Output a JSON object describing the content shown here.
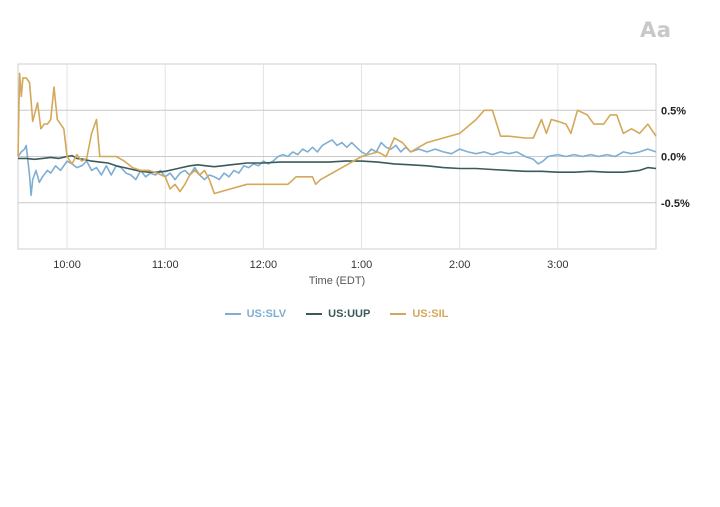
{
  "font_toggle_label": "Aa",
  "chart_data": {
    "type": "line",
    "xlabel": "Time (EDT)",
    "ylabel": "",
    "x_ticks": [
      "10:00",
      "11:00",
      "12:00",
      "1:00",
      "2:00",
      "3:00"
    ],
    "y_ticks": [
      {
        "value": 0.5,
        "label": "0.5%"
      },
      {
        "value": 0.0,
        "label": "0.0%"
      },
      {
        "value": -0.5,
        "label": "-0.5%"
      }
    ],
    "ylim": [
      -1.0,
      1.0
    ],
    "xlim": [
      "9:30",
      "4:00"
    ],
    "grid": true,
    "legend_position": "bottom",
    "series": [
      {
        "name": "US:SLV",
        "color": "#7eaed3",
        "points": [
          [
            "9:30",
            0.0
          ],
          [
            "9:32",
            0.05
          ],
          [
            "9:34",
            0.08
          ],
          [
            "9:35",
            0.12
          ],
          [
            "9:37",
            -0.2
          ],
          [
            "9:38",
            -0.42
          ],
          [
            "9:39",
            -0.25
          ],
          [
            "9:41",
            -0.15
          ],
          [
            "9:43",
            -0.28
          ],
          [
            "9:45",
            -0.22
          ],
          [
            "9:48",
            -0.15
          ],
          [
            "9:50",
            -0.18
          ],
          [
            "9:53",
            -0.1
          ],
          [
            "9:56",
            -0.15
          ],
          [
            "10:00",
            -0.05
          ],
          [
            "10:03",
            -0.08
          ],
          [
            "10:06",
            -0.12
          ],
          [
            "10:09",
            -0.1
          ],
          [
            "10:12",
            -0.05
          ],
          [
            "10:15",
            -0.15
          ],
          [
            "10:18",
            -0.12
          ],
          [
            "10:21",
            -0.2
          ],
          [
            "10:24",
            -0.1
          ],
          [
            "10:27",
            -0.2
          ],
          [
            "10:30",
            -0.1
          ],
          [
            "10:33",
            -0.12
          ],
          [
            "10:36",
            -0.18
          ],
          [
            "10:39",
            -0.2
          ],
          [
            "10:42",
            -0.25
          ],
          [
            "10:45",
            -0.15
          ],
          [
            "10:48",
            -0.22
          ],
          [
            "10:51",
            -0.18
          ],
          [
            "10:54",
            -0.2
          ],
          [
            "10:57",
            -0.15
          ],
          [
            "11:00",
            -0.22
          ],
          [
            "11:03",
            -0.18
          ],
          [
            "11:06",
            -0.25
          ],
          [
            "11:09",
            -0.18
          ],
          [
            "11:12",
            -0.15
          ],
          [
            "11:15",
            -0.2
          ],
          [
            "11:18",
            -0.12
          ],
          [
            "11:21",
            -0.2
          ],
          [
            "11:24",
            -0.25
          ],
          [
            "11:27",
            -0.2
          ],
          [
            "11:30",
            -0.22
          ],
          [
            "11:33",
            -0.25
          ],
          [
            "11:36",
            -0.18
          ],
          [
            "11:39",
            -0.22
          ],
          [
            "11:42",
            -0.15
          ],
          [
            "11:45",
            -0.18
          ],
          [
            "11:48",
            -0.1
          ],
          [
            "11:51",
            -0.12
          ],
          [
            "11:54",
            -0.08
          ],
          [
            "11:57",
            -0.1
          ],
          [
            "12:00",
            -0.05
          ],
          [
            "12:03",
            -0.08
          ],
          [
            "12:06",
            -0.05
          ],
          [
            "12:09",
            0.0
          ],
          [
            "12:12",
            0.02
          ],
          [
            "12:15",
            0.0
          ],
          [
            "12:18",
            0.05
          ],
          [
            "12:21",
            0.02
          ],
          [
            "12:24",
            0.08
          ],
          [
            "12:27",
            0.05
          ],
          [
            "12:30",
            0.1
          ],
          [
            "12:33",
            0.05
          ],
          [
            "12:36",
            0.12
          ],
          [
            "12:39",
            0.15
          ],
          [
            "12:42",
            0.18
          ],
          [
            "12:45",
            0.12
          ],
          [
            "12:48",
            0.15
          ],
          [
            "12:51",
            0.1
          ],
          [
            "12:54",
            0.15
          ],
          [
            "12:57",
            0.1
          ],
          [
            "1:00",
            0.05
          ],
          [
            "1:03",
            0.02
          ],
          [
            "1:06",
            0.08
          ],
          [
            "1:09",
            0.05
          ],
          [
            "1:12",
            0.15
          ],
          [
            "1:15",
            0.1
          ],
          [
            "1:18",
            0.08
          ],
          [
            "1:21",
            0.12
          ],
          [
            "1:24",
            0.05
          ],
          [
            "1:27",
            0.1
          ],
          [
            "1:30",
            0.05
          ],
          [
            "1:35",
            0.08
          ],
          [
            "1:40",
            0.05
          ],
          [
            "1:45",
            0.08
          ],
          [
            "1:50",
            0.05
          ],
          [
            "1:55",
            0.03
          ],
          [
            "2:00",
            0.08
          ],
          [
            "2:05",
            0.05
          ],
          [
            "2:10",
            0.03
          ],
          [
            "2:15",
            0.05
          ],
          [
            "2:20",
            0.02
          ],
          [
            "2:25",
            0.05
          ],
          [
            "2:30",
            0.03
          ],
          [
            "2:35",
            0.05
          ],
          [
            "2:40",
            0.0
          ],
          [
            "2:45",
            -0.03
          ],
          [
            "2:48",
            -0.08
          ],
          [
            "2:51",
            -0.05
          ],
          [
            "2:54",
            0.0
          ],
          [
            "3:00",
            0.02
          ],
          [
            "3:05",
            0.0
          ],
          [
            "3:10",
            0.02
          ],
          [
            "3:15",
            0.0
          ],
          [
            "3:20",
            0.02
          ],
          [
            "3:25",
            0.0
          ],
          [
            "3:30",
            0.02
          ],
          [
            "3:35",
            0.0
          ],
          [
            "3:40",
            0.05
          ],
          [
            "3:45",
            0.03
          ],
          [
            "3:50",
            0.05
          ],
          [
            "3:55",
            0.08
          ],
          [
            "4:00",
            0.05
          ]
        ]
      },
      {
        "name": "US:UUP",
        "color": "#3b5a5a",
        "points": [
          [
            "9:30",
            -0.02
          ],
          [
            "9:35",
            -0.02
          ],
          [
            "9:40",
            -0.03
          ],
          [
            "9:45",
            -0.02
          ],
          [
            "9:50",
            -0.01
          ],
          [
            "9:55",
            -0.02
          ],
          [
            "10:00",
            0.0
          ],
          [
            "10:03",
            0.01
          ],
          [
            "10:06",
            -0.02
          ],
          [
            "10:10",
            -0.03
          ],
          [
            "10:15",
            -0.05
          ],
          [
            "10:20",
            -0.06
          ],
          [
            "10:25",
            -0.07
          ],
          [
            "10:30",
            -0.1
          ],
          [
            "10:35",
            -0.12
          ],
          [
            "10:40",
            -0.14
          ],
          [
            "10:45",
            -0.16
          ],
          [
            "10:50",
            -0.17
          ],
          [
            "10:55",
            -0.17
          ],
          [
            "11:00",
            -0.16
          ],
          [
            "11:05",
            -0.14
          ],
          [
            "11:10",
            -0.12
          ],
          [
            "11:15",
            -0.1
          ],
          [
            "11:20",
            -0.09
          ],
          [
            "11:25",
            -0.1
          ],
          [
            "11:30",
            -0.11
          ],
          [
            "11:35",
            -0.1
          ],
          [
            "11:40",
            -0.09
          ],
          [
            "11:45",
            -0.08
          ],
          [
            "11:50",
            -0.07
          ],
          [
            "11:55",
            -0.07
          ],
          [
            "12:00",
            -0.07
          ],
          [
            "12:10",
            -0.06
          ],
          [
            "12:20",
            -0.06
          ],
          [
            "12:30",
            -0.06
          ],
          [
            "12:40",
            -0.06
          ],
          [
            "12:50",
            -0.05
          ],
          [
            "1:00",
            -0.05
          ],
          [
            "1:10",
            -0.06
          ],
          [
            "1:20",
            -0.08
          ],
          [
            "1:30",
            -0.09
          ],
          [
            "1:40",
            -0.1
          ],
          [
            "1:50",
            -0.12
          ],
          [
            "2:00",
            -0.13
          ],
          [
            "2:10",
            -0.13
          ],
          [
            "2:20",
            -0.14
          ],
          [
            "2:30",
            -0.15
          ],
          [
            "2:40",
            -0.16
          ],
          [
            "2:50",
            -0.16
          ],
          [
            "3:00",
            -0.17
          ],
          [
            "3:10",
            -0.17
          ],
          [
            "3:20",
            -0.16
          ],
          [
            "3:30",
            -0.17
          ],
          [
            "3:40",
            -0.17
          ],
          [
            "3:50",
            -0.15
          ],
          [
            "3:55",
            -0.12
          ],
          [
            "4:00",
            -0.13
          ]
        ]
      },
      {
        "name": "US:SIL",
        "color": "#d4a85a",
        "points": [
          [
            "9:30",
            0.0
          ],
          [
            "9:31",
            0.9
          ],
          [
            "9:32",
            0.65
          ],
          [
            "9:33",
            0.85
          ],
          [
            "9:35",
            0.85
          ],
          [
            "9:37",
            0.8
          ],
          [
            "9:38",
            0.6
          ],
          [
            "9:39",
            0.38
          ],
          [
            "9:40",
            0.45
          ],
          [
            "9:42",
            0.58
          ],
          [
            "9:44",
            0.3
          ],
          [
            "9:46",
            0.35
          ],
          [
            "9:48",
            0.35
          ],
          [
            "9:50",
            0.4
          ],
          [
            "9:52",
            0.75
          ],
          [
            "9:54",
            0.4
          ],
          [
            "9:56",
            0.35
          ],
          [
            "9:58",
            0.3
          ],
          [
            "10:00",
            0.0
          ],
          [
            "10:03",
            -0.08
          ],
          [
            "10:06",
            0.02
          ],
          [
            "10:09",
            -0.05
          ],
          [
            "10:12",
            -0.02
          ],
          [
            "10:15",
            0.25
          ],
          [
            "10:18",
            0.4
          ],
          [
            "10:20",
            0.0
          ],
          [
            "10:25",
            0.0
          ],
          [
            "10:30",
            0.0
          ],
          [
            "10:35",
            -0.05
          ],
          [
            "10:40",
            -0.12
          ],
          [
            "10:45",
            -0.15
          ],
          [
            "10:50",
            -0.15
          ],
          [
            "10:55",
            -0.18
          ],
          [
            "11:00",
            -0.22
          ],
          [
            "11:03",
            -0.35
          ],
          [
            "11:06",
            -0.3
          ],
          [
            "11:09",
            -0.38
          ],
          [
            "11:12",
            -0.3
          ],
          [
            "11:15",
            -0.2
          ],
          [
            "11:18",
            -0.15
          ],
          [
            "11:21",
            -0.2
          ],
          [
            "11:24",
            -0.15
          ],
          [
            "11:27",
            -0.25
          ],
          [
            "11:30",
            -0.4
          ],
          [
            "11:40",
            -0.35
          ],
          [
            "11:50",
            -0.3
          ],
          [
            "12:00",
            -0.3
          ],
          [
            "12:10",
            -0.3
          ],
          [
            "12:15",
            -0.3
          ],
          [
            "12:20",
            -0.22
          ],
          [
            "12:25",
            -0.22
          ],
          [
            "12:30",
            -0.22
          ],
          [
            "12:32",
            -0.3
          ],
          [
            "12:35",
            -0.25
          ],
          [
            "12:40",
            -0.2
          ],
          [
            "12:50",
            -0.1
          ],
          [
            "1:00",
            0.0
          ],
          [
            "1:10",
            0.05
          ],
          [
            "1:15",
            0.0
          ],
          [
            "1:20",
            0.2
          ],
          [
            "1:25",
            0.15
          ],
          [
            "1:30",
            0.05
          ],
          [
            "1:40",
            0.15
          ],
          [
            "1:50",
            0.2
          ],
          [
            "2:00",
            0.25
          ],
          [
            "2:10",
            0.4
          ],
          [
            "2:15",
            0.5
          ],
          [
            "2:20",
            0.5
          ],
          [
            "2:25",
            0.22
          ],
          [
            "2:30",
            0.22
          ],
          [
            "2:40",
            0.2
          ],
          [
            "2:45",
            0.2
          ],
          [
            "2:50",
            0.4
          ],
          [
            "2:53",
            0.25
          ],
          [
            "2:56",
            0.4
          ],
          [
            "3:00",
            0.38
          ],
          [
            "3:05",
            0.35
          ],
          [
            "3:08",
            0.25
          ],
          [
            "3:12",
            0.5
          ],
          [
            "3:18",
            0.45
          ],
          [
            "3:22",
            0.35
          ],
          [
            "3:28",
            0.35
          ],
          [
            "3:32",
            0.45
          ],
          [
            "3:36",
            0.45
          ],
          [
            "3:40",
            0.25
          ],
          [
            "3:45",
            0.3
          ],
          [
            "3:50",
            0.25
          ],
          [
            "3:55",
            0.35
          ],
          [
            "4:00",
            0.22
          ]
        ]
      }
    ]
  }
}
